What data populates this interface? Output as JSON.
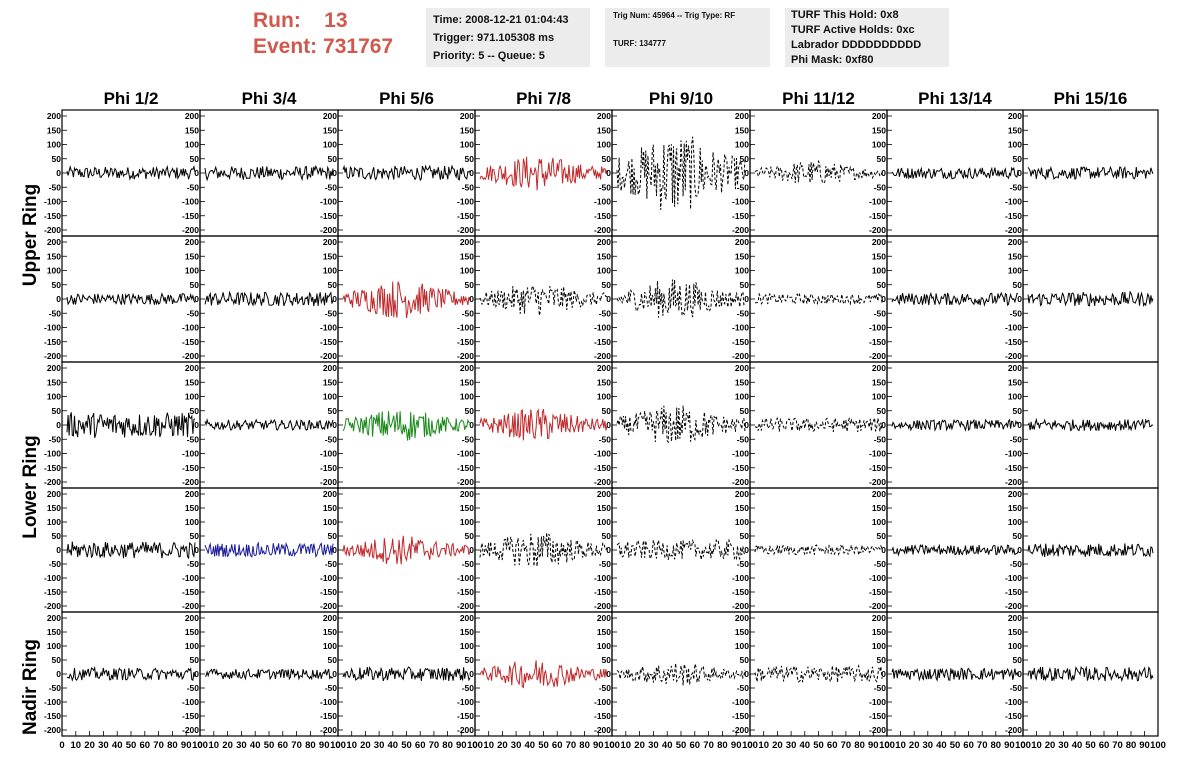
{
  "header": {
    "run_label": "Run:",
    "run_value": "13",
    "event_label": "Event:",
    "event_value": "731767"
  },
  "info_time": {
    "time": "Time: 2008-12-21 01:04:43",
    "trigger": "Trigger: 971.105308 ms",
    "priority": "Priority: 5 -- Queue: 5"
  },
  "info_trig": {
    "trig": "Trig Num: 45964 -- Trig Type: RF",
    "turf": "TURF: 134777"
  },
  "info_turf": {
    "hold": "TURF This Hold: 0x8",
    "active": "TURF Active Holds: 0xc",
    "labrador": "Labrador DDDDDDDDDD",
    "phimask": "Phi Mask: 0xf80"
  },
  "ring_labels": [
    "Upper Ring",
    "Lower Ring",
    "Nadir Ring"
  ],
  "colors": {
    "black": "#000000",
    "red": "#c0282a",
    "green": "#1a8a1a",
    "blue": "#1c1c9a"
  },
  "chart_data": {
    "type": "line",
    "columns": [
      "Phi 1/2",
      "Phi 3/4",
      "Phi 5/6",
      "Phi 7/8",
      "Phi 9/10",
      "Phi 11/12",
      "Phi 13/14",
      "Phi 15/16"
    ],
    "rows": 5,
    "ylim": [
      -200,
      200
    ],
    "xlim": [
      0,
      100
    ],
    "y_ticks": [
      200,
      150,
      100,
      50,
      0,
      -50,
      -100,
      -150,
      -200
    ],
    "x_tick_labels": [
      "0",
      "10",
      "20",
      "30",
      "40",
      "50",
      "60",
      "70",
      "80",
      "90",
      "100"
    ],
    "panels": [
      [
        {
          "color": "black",
          "amp": 22,
          "style": "solid"
        },
        {
          "color": "black",
          "amp": 24,
          "style": "solid"
        },
        {
          "color": "black",
          "amp": 25,
          "style": "solid"
        },
        {
          "color": "red",
          "amp": 65,
          "style": "solid",
          "burst": true
        },
        {
          "color": "black",
          "amp": 150,
          "style": "dashed",
          "burst": true
        },
        {
          "color": "black",
          "amp": 45,
          "style": "dashed",
          "burst": true
        },
        {
          "color": "black",
          "amp": 20,
          "style": "solid"
        },
        {
          "color": "black",
          "amp": 22,
          "style": "solid"
        }
      ],
      [
        {
          "color": "black",
          "amp": 20,
          "style": "solid"
        },
        {
          "color": "black",
          "amp": 25,
          "style": "solid"
        },
        {
          "color": "red",
          "amp": 70,
          "style": "solid",
          "burst": true
        },
        {
          "color": "black",
          "amp": 60,
          "style": "dashed",
          "burst": true
        },
        {
          "color": "black",
          "amp": 75,
          "style": "dashed",
          "burst": true
        },
        {
          "color": "black",
          "amp": 18,
          "style": "dashed"
        },
        {
          "color": "black",
          "amp": 22,
          "style": "solid"
        },
        {
          "color": "black",
          "amp": 25,
          "style": "solid"
        }
      ],
      [
        {
          "color": "black",
          "amp": 45,
          "style": "solid"
        },
        {
          "color": "black",
          "amp": 18,
          "style": "solid"
        },
        {
          "color": "green",
          "amp": 60,
          "style": "solid",
          "burst": true
        },
        {
          "color": "red",
          "amp": 60,
          "style": "solid",
          "burst": true
        },
        {
          "color": "black",
          "amp": 75,
          "style": "dashed",
          "burst": true
        },
        {
          "color": "black",
          "amp": 25,
          "style": "dashed"
        },
        {
          "color": "black",
          "amp": 18,
          "style": "solid"
        },
        {
          "color": "black",
          "amp": 20,
          "style": "solid"
        }
      ],
      [
        {
          "color": "black",
          "amp": 30,
          "style": "solid"
        },
        {
          "color": "blue",
          "amp": 25,
          "style": "solid"
        },
        {
          "color": "red",
          "amp": 55,
          "style": "solid",
          "burst": true
        },
        {
          "color": "black",
          "amp": 70,
          "style": "dashed",
          "burst": true
        },
        {
          "color": "black",
          "amp": 35,
          "style": "dashed"
        },
        {
          "color": "black",
          "amp": 18,
          "style": "dashed"
        },
        {
          "color": "black",
          "amp": 18,
          "style": "solid"
        },
        {
          "color": "black",
          "amp": 25,
          "style": "solid"
        }
      ],
      [
        {
          "color": "black",
          "amp": 22,
          "style": "solid"
        },
        {
          "color": "black",
          "amp": 18,
          "style": "solid"
        },
        {
          "color": "black",
          "amp": 25,
          "style": "solid"
        },
        {
          "color": "red",
          "amp": 55,
          "style": "solid",
          "burst": true
        },
        {
          "color": "black",
          "amp": 45,
          "style": "dashed",
          "burst": true
        },
        {
          "color": "black",
          "amp": 30,
          "style": "dashed"
        },
        {
          "color": "black",
          "amp": 22,
          "style": "solid"
        },
        {
          "color": "black",
          "amp": 25,
          "style": "solid"
        }
      ]
    ]
  }
}
